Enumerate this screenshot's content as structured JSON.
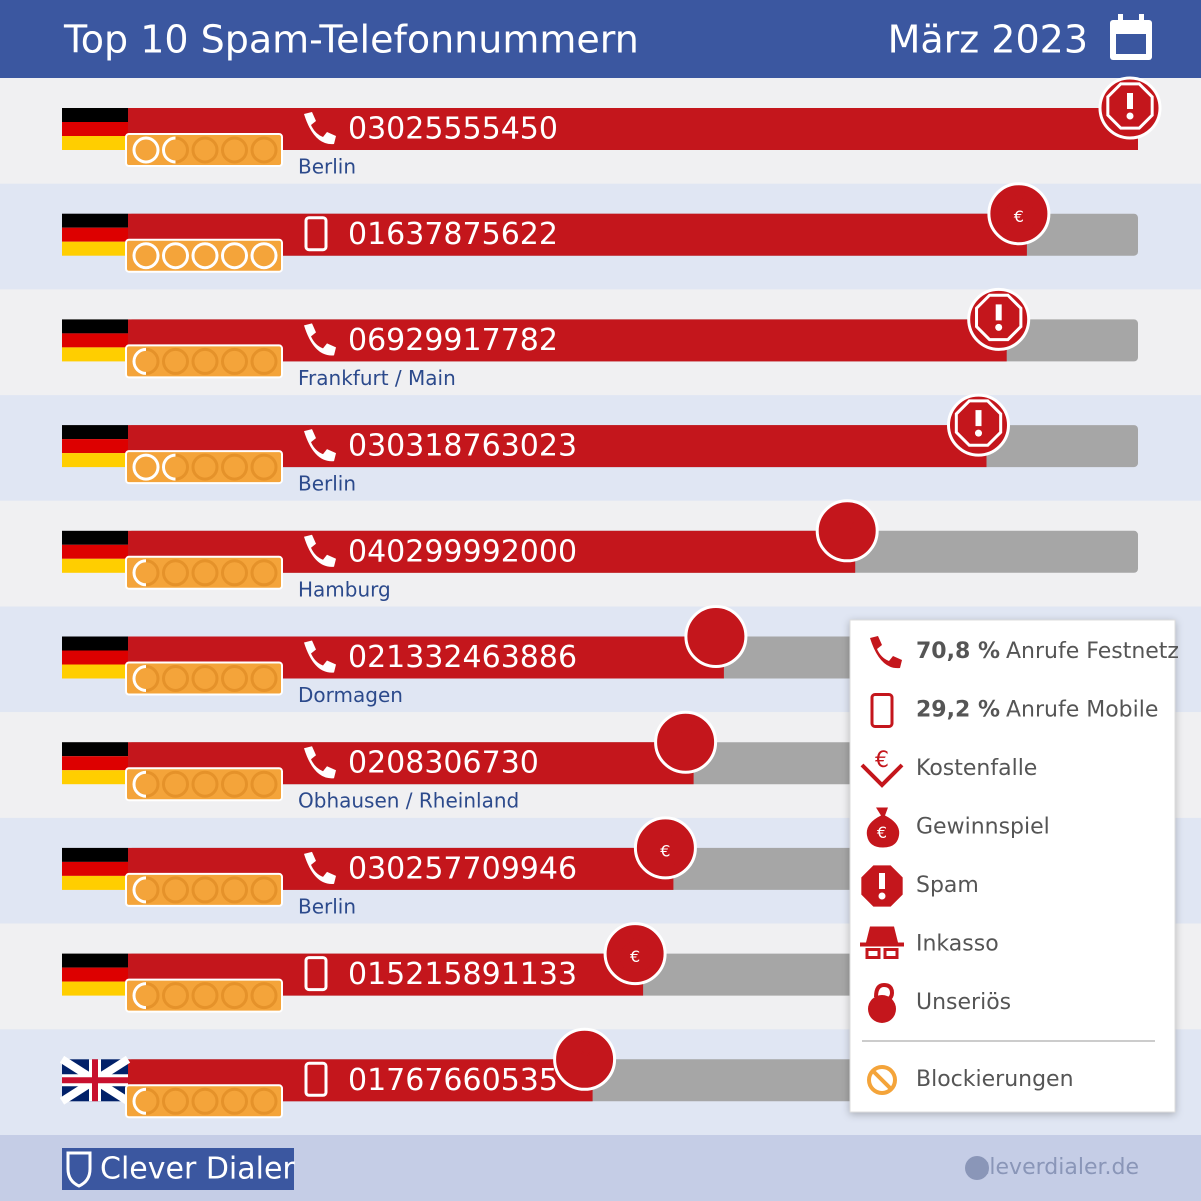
{
  "header": {
    "title": "Top 10 Spam-Telefonnummern",
    "date": "März 2023"
  },
  "rows": [
    {
      "number": "03025555450",
      "location": "Berlin",
      "bar_length": 100,
      "blocks": 1.5
    },
    {
      "number": "01637875622",
      "location": null,
      "bar_length": 89,
      "blocks": 5
    },
    {
      "number": "06929917782",
      "location": "Frankfurt / Main",
      "bar_length": 87,
      "blocks": 0.5
    },
    {
      "number": "030318763023",
      "location": "Berlin",
      "bar_length": 85,
      "blocks": 1.5
    },
    {
      "number": "040299992000",
      "location": "Hamburg",
      "bar_length": 72,
      "blocks": 0.5
    },
    {
      "number": "021332463886",
      "location": "Dormagen",
      "bar_length": 59,
      "blocks": 0.3
    },
    {
      "number": "0208306730",
      "location": "Obhausen / Rheinland",
      "bar_length": 56,
      "blocks": 0.3
    },
    {
      "number": "030257709946",
      "location": "Berlin",
      "bar_length": 54,
      "blocks": 0.3
    },
    {
      "number": "015215891133",
      "location": null,
      "bar_length": 51,
      "blocks": 0.3
    },
    {
      "number": "01767660535",
      "location": null,
      "bar_length": 46,
      "blocks": 0.3
    }
  ],
  "legend": [
    {
      "value": "70,8 %",
      "label": "Anrufe Festnetz"
    },
    {
      "value": "29,2 %",
      "label": "Anrufe Mobile"
    },
    {
      "label": "Kostenfalle"
    },
    {
      "label": "Gewinnspiel"
    },
    {
      "label": "Spam"
    },
    {
      "label": "Inkasso"
    },
    {
      "label": "Unseriös"
    },
    {
      "label": "Blockierungen"
    }
  ],
  "footer": {
    "brand": "Clever Dialer",
    "url": "cleverdialer.de"
  }
}
